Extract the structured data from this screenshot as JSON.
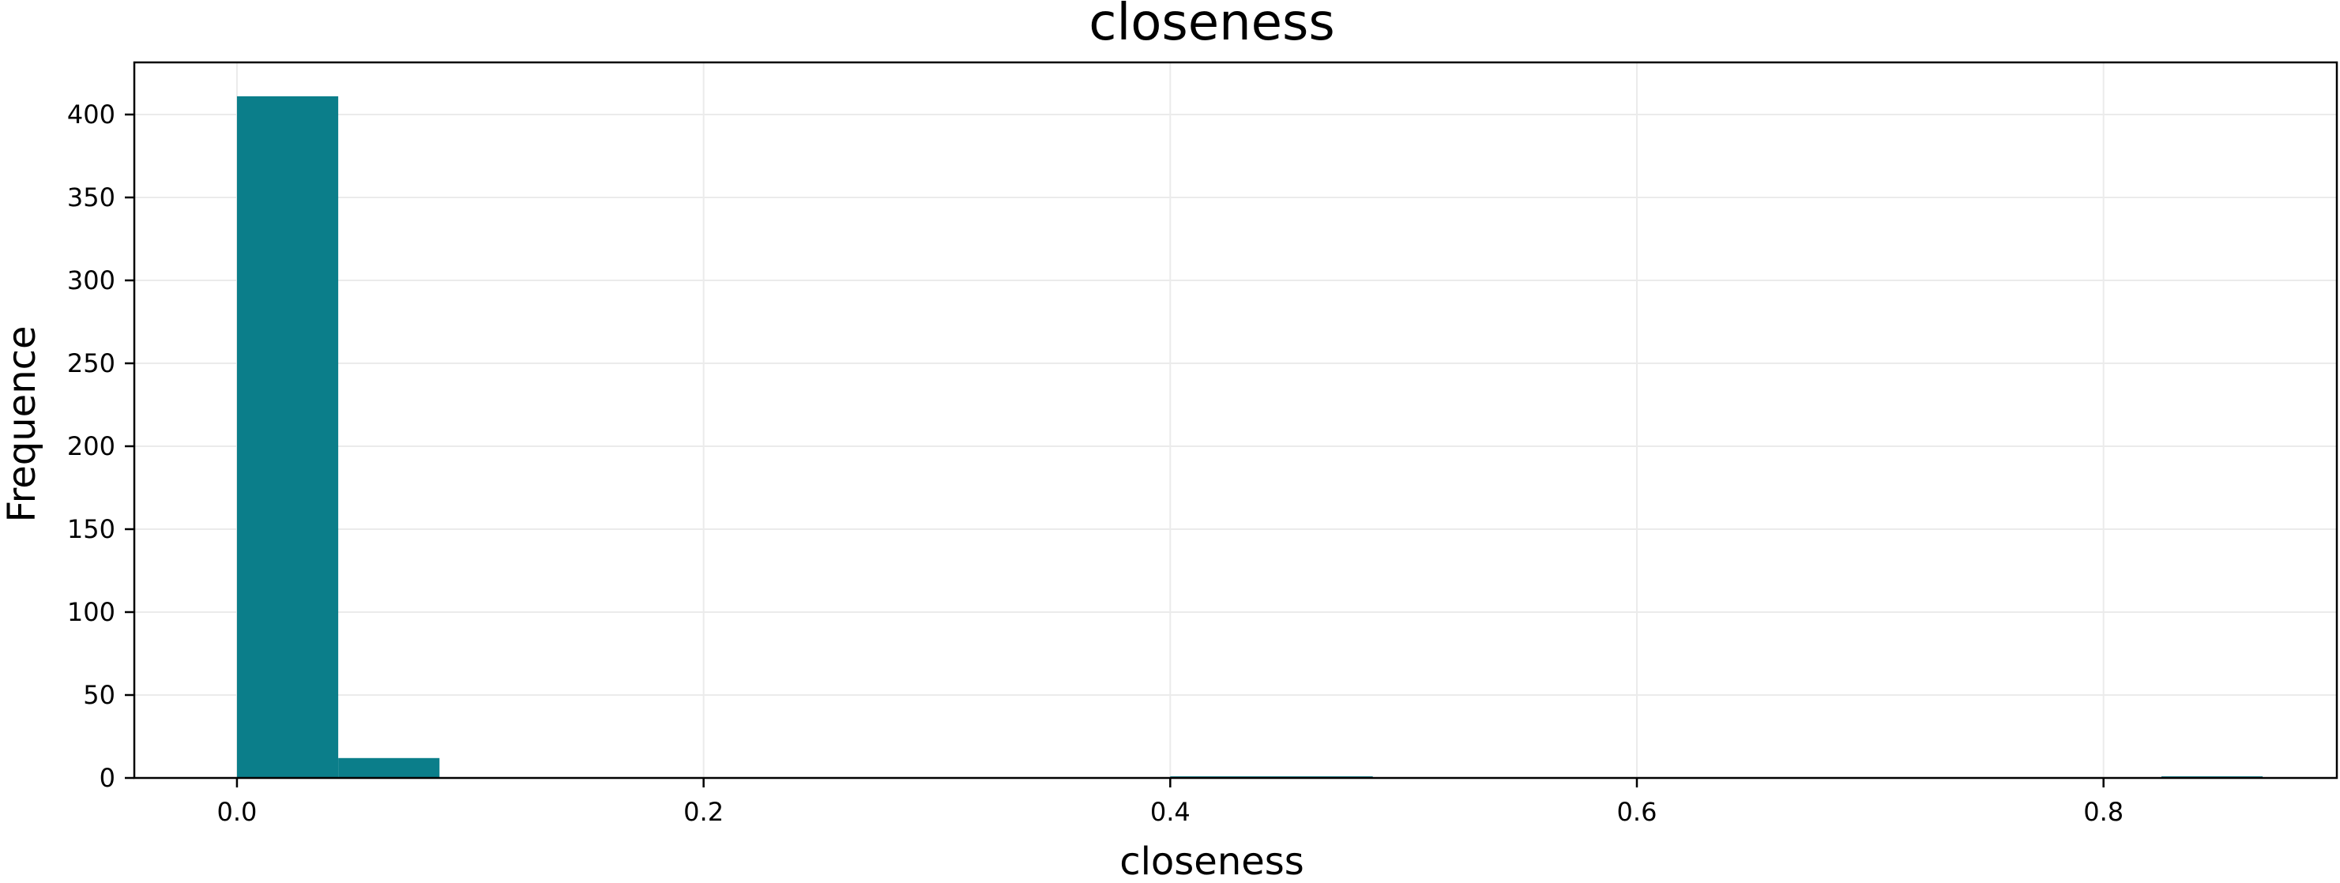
{
  "chart_data": {
    "type": "bar",
    "title": "closeness",
    "xlabel": "closeness",
    "ylabel": "Frequence",
    "xlim": [
      -0.044,
      0.9
    ],
    "ylim": [
      0,
      400
    ],
    "x_ticks": [
      0.0,
      0.2,
      0.4,
      0.6,
      0.8
    ],
    "x_tick_labels": [
      "0.0",
      "0.2",
      "0.4",
      "0.6",
      "0.8"
    ],
    "y_ticks": [
      0,
      50,
      100,
      150,
      200,
      250,
      300,
      350,
      400
    ],
    "y_tick_labels": [
      "0",
      "50",
      "100",
      "150",
      "200",
      "250",
      "300",
      "350",
      "400"
    ],
    "grid": true,
    "bar_color": "#0b7e8a",
    "bins": [
      {
        "x0": 0.0,
        "x1": 0.0434,
        "count": 411
      },
      {
        "x0": 0.0434,
        "x1": 0.0868,
        "count": 12
      },
      {
        "x0": 0.4,
        "x1": 0.4434,
        "count": 1
      },
      {
        "x0": 0.4434,
        "x1": 0.4868,
        "count": 1
      },
      {
        "x0": 0.8248,
        "x1": 0.8682,
        "count": 1
      }
    ]
  }
}
